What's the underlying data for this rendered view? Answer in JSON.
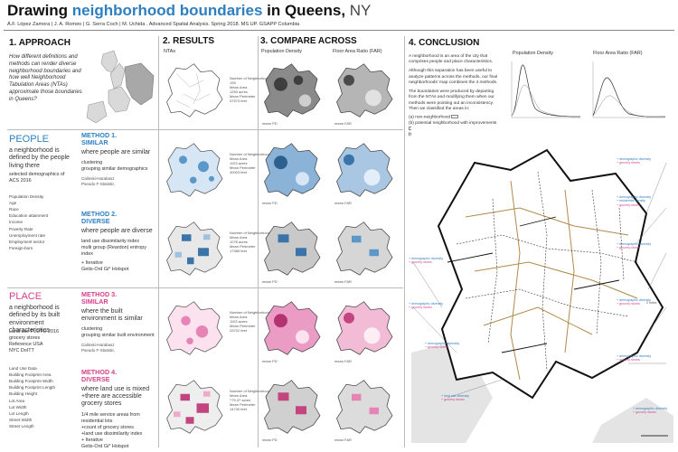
{
  "header": {
    "title_a": "Drawing ",
    "title_b": "neighborhood boundaries",
    "title_c": " in Queens, ",
    "title_d": "NY",
    "authors": "Á.F. López Zamora | J. A. Romeo | G. Serra Coch | M. Uchida . Advanced Spatial Analysis. Spring 2018. MS UP. GSAPP Columbia"
  },
  "approach": {
    "heading": "1. APPROACH",
    "question": "How different definitions and methods can render diverse neighborhood boundaries and how well Neighborhood Tabulation Areas (NTAs) approximate those boundaries in Queens?"
  },
  "results": {
    "heading": "2. RESULTS",
    "ntas_label": "NTAs"
  },
  "compare": {
    "heading": "3. COMPARE ACROSS",
    "pop_label": "Population Density",
    "far_label": "Floor Area Ratio (FAR)"
  },
  "conclusion": {
    "heading": "4. CONCLUSION",
    "text1": "A neighborhood is an area of the city that comprises people and place characteristics.",
    "text2": "Although this separation has been useful to analyze patterns across the methods, our final neighborhoods' map combines the 4 methods.",
    "text3": "The boundaries were produced by departing from the NTAs and modifying them when our methods were pointing out an inconsistency. Then we classified the areas in:",
    "legend_a": "(a)  non-neighborhood",
    "legend_b": "(b)  potential neighborhood with improvements",
    "legend_c": "(c)  neighborhood",
    "chart_pop": "Population Density",
    "chart_far": "Floor Area Ratio (FAR)",
    "scale": "2 miles"
  },
  "people": {
    "heading": "PEOPLE",
    "definition": "a neighborhood is defined by the people living there",
    "source": "selected demographics of ACS 2016",
    "variables": [
      "Population Density",
      "Age",
      "Race",
      "Education attainment",
      "Income",
      "Poverty Rate",
      "Unemployment rate",
      "Employment sector",
      "Foreign-born"
    ]
  },
  "place": {
    "heading": "PLACE",
    "definition": "a neighborhood is defined by its built environment characteristics",
    "sources": [
      "Land use PLUTO 2016",
      "grocery stores",
      "Reference USA",
      "NYC DoITT"
    ],
    "variables": [
      "Land Use Data",
      "Building Footprint Area",
      "Building Footprint Width",
      "Building Footprint Length",
      "Building Height",
      "Lot Area",
      "Lot Width",
      "Lot Length",
      "Street Width",
      "Street Length"
    ]
  },
  "methods": [
    {
      "title": "METHOD 1.\nSIMILAR",
      "desc": "where people are similar",
      "detail": "clustering\ngrouping similar demographics",
      "note": "Calinski-Harabasz\nPseudo F-Statistic"
    },
    {
      "title": "METHOD 2.\nDIVERSE",
      "desc": "where people are diverse",
      "detail": "land use dissimilarity index\nmulti group (Reardon) entropy index",
      "note": "+ Iterative\nGetis-Ord Gi* Hotspot"
    },
    {
      "title": "METHOD 3.\nSIMILAR",
      "desc": "where the built environment is similar",
      "detail": "clustering\ngrouping similar built environment",
      "note": "Calinski-Harabasz\nPseudo F-Statistic"
    },
    {
      "title": "METHOD 4.\nDIVERSE",
      "desc": "where land use is mixed +there are accessible grocery stores",
      "detail": "1/4 mile service areas from residential lots\n+count of grocery stores\n+land use dissimilarity index\n+ Iterative\nGetis-Ord Gi* Hotspot",
      "note": ""
    }
  ],
  "stats": {
    "ntas": [
      "Number of Neighborhoods",
      "195",
      "Mean Area",
      "1253 acres",
      "Mean Perimeter",
      "47573 feet"
    ],
    "m1": [
      "Number of Neighborhoods",
      "",
      "Mean Area",
      "1103 acres",
      "Mean Perimeter",
      "40003 feet"
    ],
    "m2": [
      "Number of Neighborhoods",
      "",
      "Mean Area",
      "1078 acres",
      "Mean Perimeter",
      "17985 feet"
    ],
    "m3": [
      "Number of Neighborhoods",
      "",
      "Mean Area",
      "1103 acres",
      "Mean Perimeter",
      "33702 feet"
    ],
    "m4": [
      "Number of Neighborhoods",
      "",
      "Mean Area",
      "775.37 acres",
      "Mean Perimeter",
      "14730 feet"
    ]
  },
  "compare_stats": [
    "mean PD",
    "mean FAR",
    "mean PD",
    "mean FAR",
    "mean PD",
    "mean FAR",
    "mean PD",
    "mean FAR",
    "mean PD",
    "mean FAR"
  ],
  "annotations": {
    "right": [
      "+ demographic diversity",
      "+ grocery stores",
      "+ demographic diversity",
      "+ residential density",
      "+ grocery stores",
      "+ demographic diversity",
      "+ grocery stores",
      "+ demographic diversity",
      "+ grocery stores",
      "+ demographic diversity",
      "+ grocery stores",
      "+ demographic diversity",
      "+ grocery stores"
    ],
    "left": [
      "+ demographic diversity",
      "+ grocery stores",
      "+ demographic diversity",
      "+ grocery stores",
      "+ demographic diversity",
      "+ grocery stores",
      "+ land use diversity",
      "+ grocery stores"
    ]
  }
}
